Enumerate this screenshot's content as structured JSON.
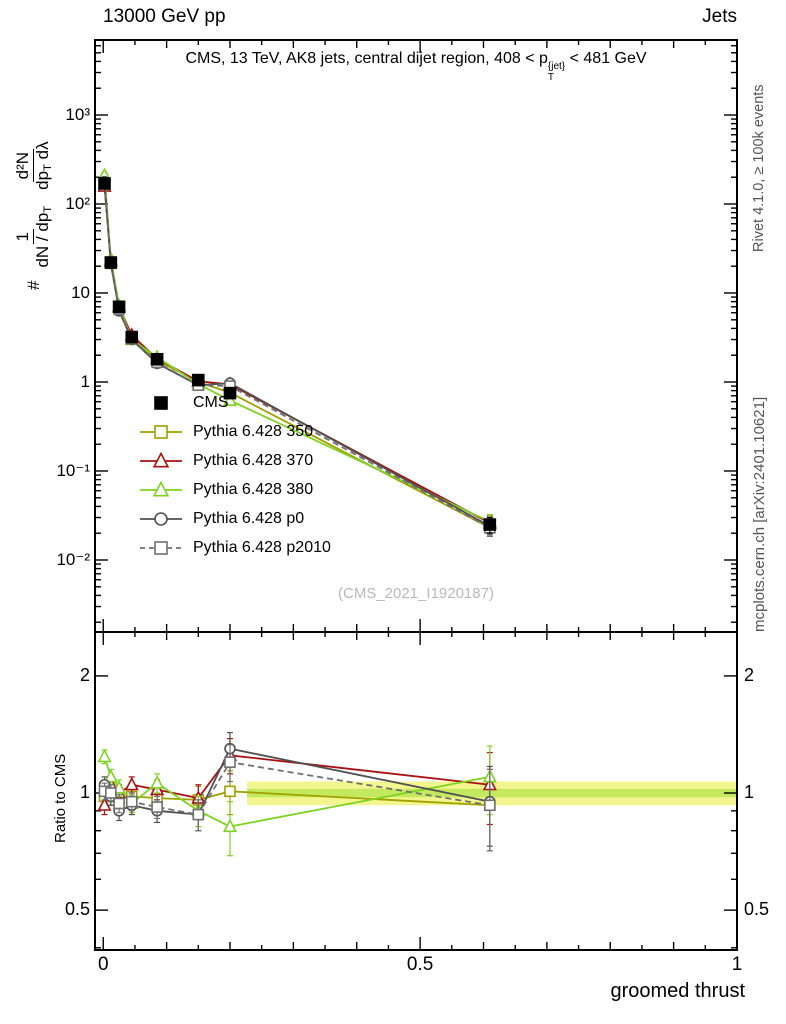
{
  "header": {
    "left": "13000 GeV pp",
    "right": "Jets"
  },
  "title": {
    "pre": "CMS, 13 TeV, AK8 jets, central dijet region, 408 < ",
    "p": "p",
    "sup": "{jet}",
    "sub": "T",
    "post": " < 481 GeV"
  },
  "ylabel": {
    "hash": "#",
    "frac1_num": "1",
    "frac1_den": "dN / dp",
    "frac1_den_sub": "T",
    "frac2_num": "d²N",
    "frac2_den": "dp",
    "frac2_den_sub": "T",
    "frac2_den_tail": " dλ"
  },
  "ratio_ylabel": "Ratio to CMS",
  "xlabel": "groomed thrust",
  "watermark": "(CMS_2021_I1920187)",
  "side_notes": {
    "top": "Rivet 4.1.0, ≥ 100k events",
    "bottom": "mcplots.cern.ch [arXiv:2401.10621]"
  },
  "chart_data": {
    "type": "line",
    "title": "CMS, 13 TeV, AK8 jets, central dijet region, 408 < p_T^{jet} < 481 GeV",
    "xlabel": "groomed thrust",
    "ylabel": "# 1/(dN/dp_T) d²N/(dp_T dλ)",
    "ratio_ylabel": "Ratio to CMS",
    "x_range": [
      -0.013,
      1.0
    ],
    "x_ticks": [
      0,
      0.5,
      1
    ],
    "x_tick_labels": [
      "0",
      "0.5",
      "1"
    ],
    "y_scale": "log",
    "y_tick_values_main": [
      1000,
      100,
      10,
      1,
      0.1,
      0.01
    ],
    "y_tick_labels_main": [
      "10³",
      "10²",
      "10",
      "1",
      "10⁻¹",
      "10⁻²"
    ],
    "ratio_scale": "log",
    "ratio_tick_values": [
      2,
      1,
      0.5
    ],
    "ratio_tick_labels": [
      "2",
      "1",
      "0.5"
    ],
    "x": [
      0.002,
      0.012,
      0.025,
      0.045,
      0.085,
      0.15,
      0.2,
      0.61
    ],
    "cms": {
      "label": "CMS",
      "color": "#000000",
      "marker": "square",
      "values": [
        170,
        22,
        7,
        3.2,
        1.8,
        1.05,
        0.75,
        0.025
      ],
      "err_rel": [
        0.08,
        0.07,
        0.06,
        0.06,
        0.07,
        0.08,
        0.1,
        0.2
      ]
    },
    "series": [
      {
        "label": "Pythia 6.428 350",
        "color": "#a0a000",
        "marker": "square",
        "dash": false,
        "values": [
          166,
          21.5,
          6.9,
          3.15,
          1.75,
          1.0,
          0.76,
          0.023
        ],
        "ratio": [
          0.98,
          0.98,
          0.99,
          0.98,
          0.97,
          0.96,
          1.01,
          0.93
        ]
      },
      {
        "label": "Pythia 6.428 370",
        "color": "#aa1111",
        "marker": "triangle",
        "dash": false,
        "values": [
          158,
          23,
          7.0,
          3.35,
          1.83,
          1.02,
          0.94,
          0.026
        ],
        "ratio": [
          0.93,
          1.05,
          1.0,
          1.05,
          1.02,
          0.97,
          1.25,
          1.05
        ]
      },
      {
        "label": "Pythia 6.428 380",
        "color": "#7ed321",
        "marker": "triangle",
        "dash": false,
        "values": [
          210,
          24,
          7.2,
          3.0,
          1.9,
          0.95,
          0.62,
          0.027
        ],
        "ratio": [
          1.24,
          1.1,
          1.03,
          0.94,
          1.06,
          0.9,
          0.82,
          1.1
        ]
      },
      {
        "label": "Pythia 6.428 p0",
        "color": "#505050",
        "marker": "circle",
        "dash": false,
        "values": [
          178,
          21.5,
          6.3,
          3.0,
          1.62,
          0.92,
          0.97,
          0.024
        ],
        "ratio": [
          1.05,
          0.98,
          0.9,
          0.93,
          0.9,
          0.88,
          1.3,
          0.95
        ]
      },
      {
        "label": "Pythia 6.428 p2010",
        "color": "#707070",
        "marker": "square",
        "dash": true,
        "values": [
          172,
          22,
          6.6,
          3.05,
          1.66,
          0.92,
          0.9,
          0.023
        ],
        "ratio": [
          1.01,
          1.0,
          0.94,
          0.95,
          0.92,
          0.88,
          1.2,
          0.93
        ]
      }
    ],
    "main_err_rel": [
      0.08,
      0.07,
      0.06,
      0.06,
      0.07,
      0.08,
      0.1,
      0.2
    ],
    "ratio_err": [
      0.05,
      0.05,
      0.05,
      0.05,
      0.06,
      0.08,
      0.13,
      0.22
    ],
    "band": {
      "x_start": 0.227,
      "x_end": 1.0,
      "outer": [
        0.93,
        1.07
      ],
      "inner": [
        0.975,
        1.025
      ],
      "outer_color": "#f3f58e",
      "inner_color": "#c4e95f"
    }
  }
}
